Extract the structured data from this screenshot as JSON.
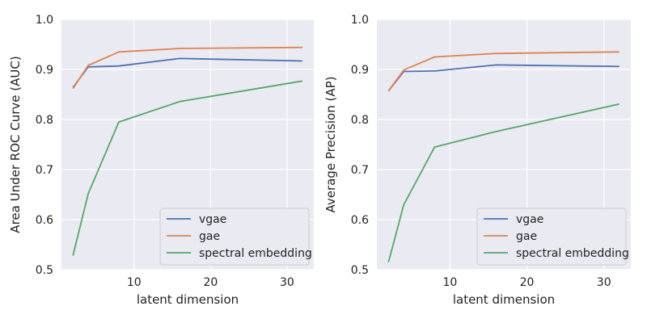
{
  "chart_data": [
    {
      "type": "line",
      "xlabel": "latent dimension",
      "ylabel": "Area Under ROC Curve (AUC)",
      "xlim": [
        0.5,
        33.5
      ],
      "ylim": [
        0.5,
        1.0
      ],
      "xticks": [
        10,
        20,
        30
      ],
      "yticks": [
        0.5,
        0.6,
        0.7,
        0.8,
        0.9,
        1.0
      ],
      "grid": true,
      "legend_position": "lower-right",
      "series": [
        {
          "name": "vgae",
          "color": "#4c72b0",
          "x": [
            2,
            4,
            8,
            16,
            32
          ],
          "y": [
            0.864,
            0.905,
            0.907,
            0.922,
            0.917
          ]
        },
        {
          "name": "gae",
          "color": "#dd8452",
          "x": [
            2,
            4,
            8,
            16,
            32
          ],
          "y": [
            0.862,
            0.908,
            0.935,
            0.942,
            0.944
          ]
        },
        {
          "name": "spectral embedding",
          "color": "#55a868",
          "x": [
            2,
            4,
            8,
            16,
            32
          ],
          "y": [
            0.528,
            0.652,
            0.795,
            0.836,
            0.877
          ]
        }
      ]
    },
    {
      "type": "line",
      "xlabel": "latent dimension",
      "ylabel": "Average Precision (AP)",
      "xlim": [
        0.5,
        33.5
      ],
      "ylim": [
        0.5,
        1.0
      ],
      "xticks": [
        10,
        20,
        30
      ],
      "yticks": [
        0.5,
        0.6,
        0.7,
        0.8,
        0.9,
        1.0
      ],
      "grid": true,
      "legend_position": "lower-right",
      "series": [
        {
          "name": "vgae",
          "color": "#4c72b0",
          "x": [
            2,
            4,
            8,
            16,
            32
          ],
          "y": [
            0.857,
            0.896,
            0.897,
            0.909,
            0.906
          ]
        },
        {
          "name": "gae",
          "color": "#dd8452",
          "x": [
            2,
            4,
            8,
            16,
            32
          ],
          "y": [
            0.857,
            0.899,
            0.925,
            0.932,
            0.935
          ]
        },
        {
          "name": "spectral embedding",
          "color": "#55a868",
          "x": [
            2,
            4,
            8,
            16,
            32
          ],
          "y": [
            0.515,
            0.63,
            0.745,
            0.776,
            0.831
          ]
        }
      ]
    }
  ]
}
